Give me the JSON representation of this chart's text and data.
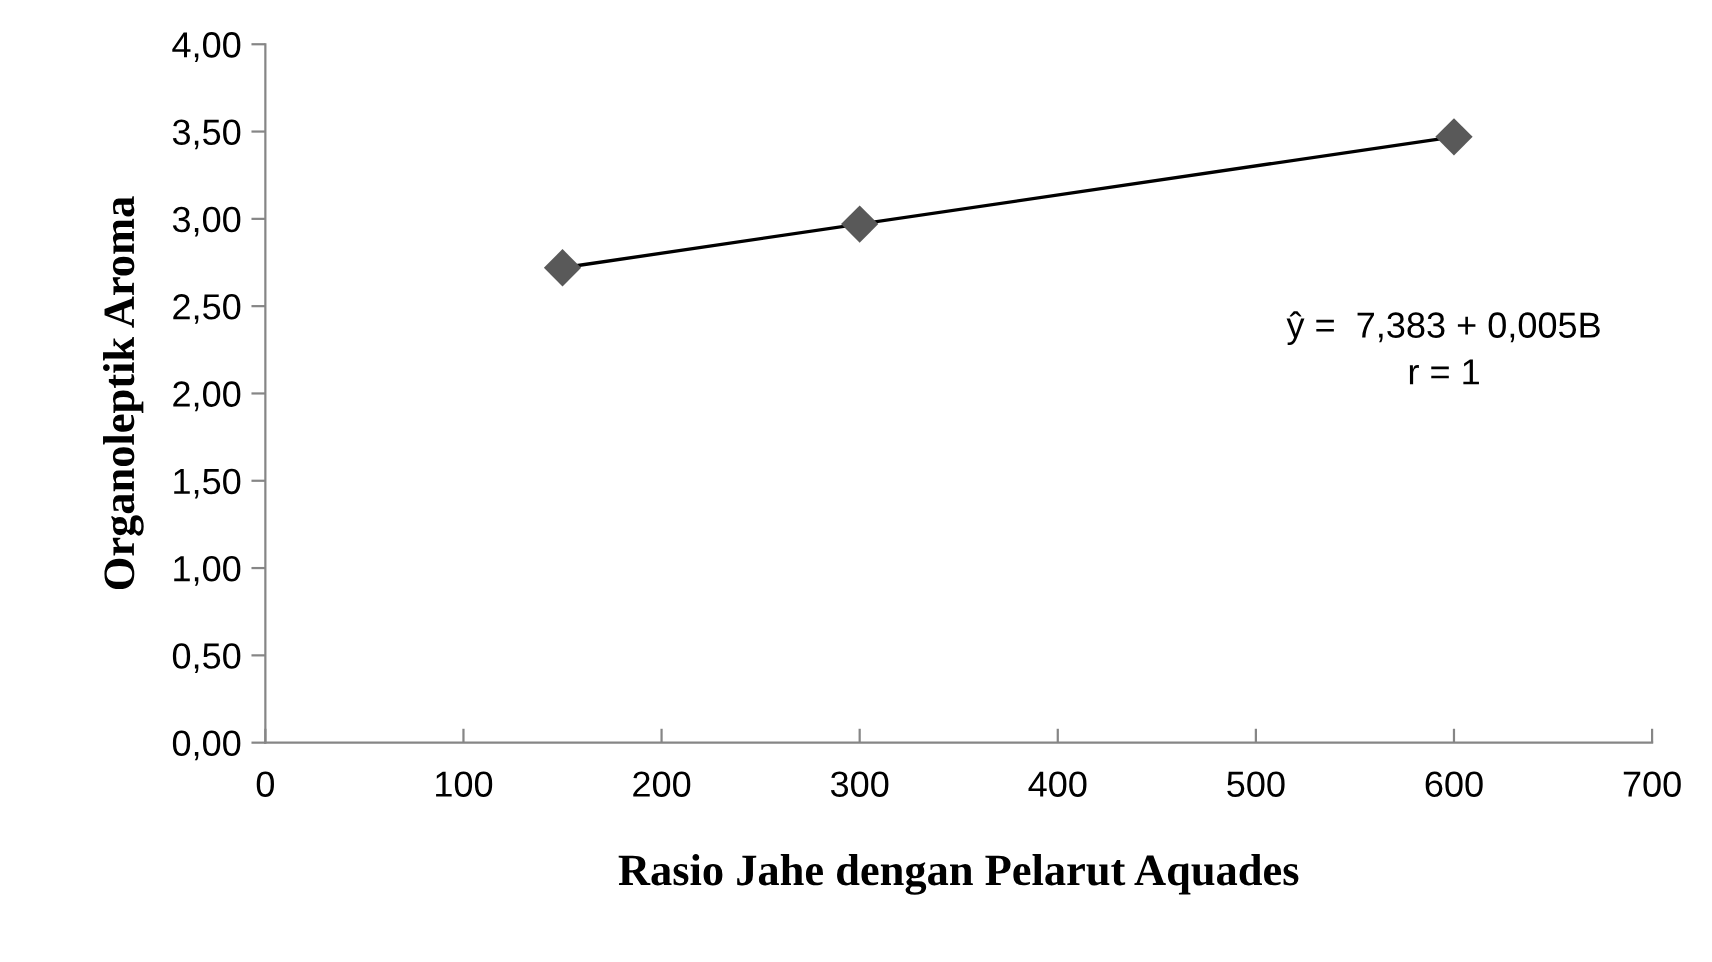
{
  "chart_data": {
    "type": "scatter",
    "xlabel": "Rasio Jahe dengan Pelarut Aquades",
    "ylabel": "Organoleptik Aroma",
    "x": [
      150,
      300,
      600
    ],
    "series": [
      {
        "color": "#595959",
        "marker": "diamond",
        "values": [
          2.72,
          2.97,
          3.47
        ]
      },
      {
        "type": "line",
        "color": "#000000",
        "marker": "none",
        "line_style": "solid",
        "x": [
          150,
          600
        ],
        "values": [
          2.72,
          3.47
        ]
      }
    ],
    "xlim": [
      0,
      700
    ],
    "xticks": [
      0,
      100,
      200,
      300,
      400,
      500,
      600,
      700
    ],
    "ylim": [
      0,
      4
    ],
    "yticks": [
      {
        "value": 0,
        "label": "0,00"
      },
      {
        "value": 0.5,
        "label": "0,50"
      },
      {
        "value": 1,
        "label": "1,00"
      },
      {
        "value": 1.5,
        "label": "1,50"
      },
      {
        "value": 2,
        "label": "2,00"
      },
      {
        "value": 2.5,
        "label": "2,50"
      },
      {
        "value": 3,
        "label": "3,00"
      },
      {
        "value": 3.5,
        "label": "3,50"
      },
      {
        "value": 4,
        "label": "4,00"
      }
    ],
    "annotations": [
      "ŷ =  7,383 + 0,005B\nr = 1"
    ],
    "grid": false,
    "legend": false
  }
}
